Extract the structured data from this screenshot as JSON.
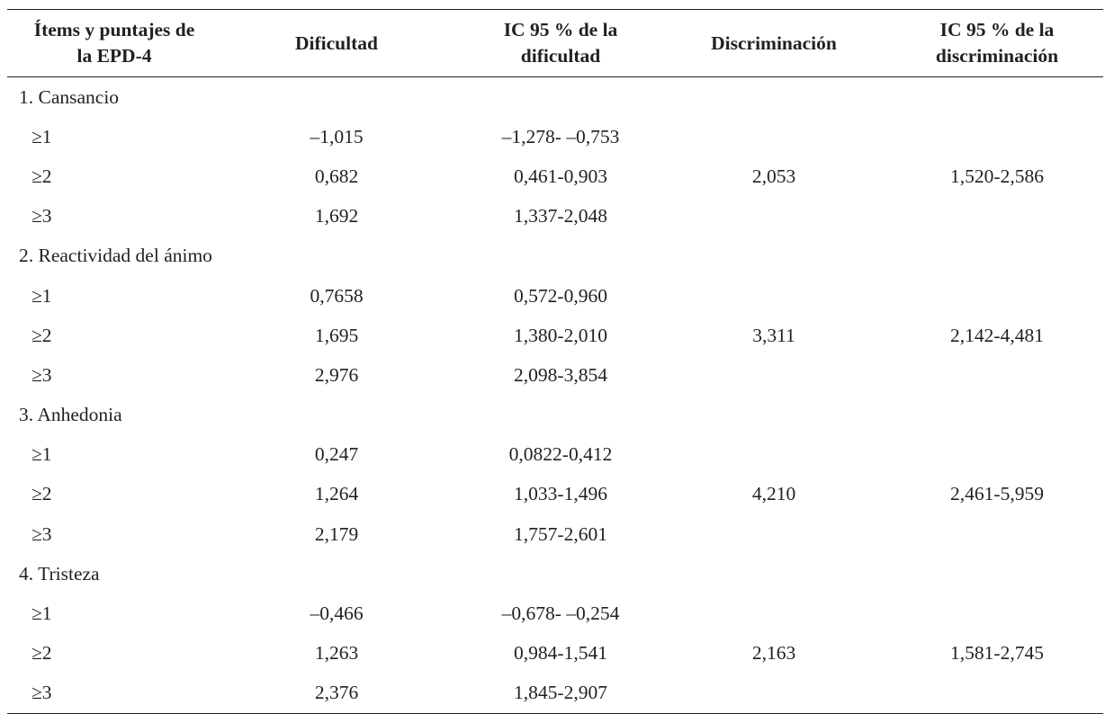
{
  "table": {
    "headers": [
      "Ítems y puntajes de\nla EPD-4",
      "Dificultad",
      "IC 95 % de la\ndificultad",
      "Discriminación",
      "IC 95 % de la\ndiscriminación"
    ],
    "groups": [
      {
        "label": "1. Cansancio",
        "discriminacion": "2,053",
        "ic_discriminacion": "1,520-2,586",
        "rows": [
          {
            "nivel": "≥1",
            "dificultad": "–1,015",
            "ic_dificultad": "–1,278- –0,753"
          },
          {
            "nivel": "≥2",
            "dificultad": "0,682",
            "ic_dificultad": "0,461-0,903"
          },
          {
            "nivel": "≥3",
            "dificultad": "1,692",
            "ic_dificultad": "1,337-2,048"
          }
        ]
      },
      {
        "label": "2. Reactividad del ánimo",
        "discriminacion": "3,311",
        "ic_discriminacion": "2,142-4,481",
        "rows": [
          {
            "nivel": "≥1",
            "dificultad": "0,7658",
            "ic_dificultad": "0,572-0,960"
          },
          {
            "nivel": "≥2",
            "dificultad": "1,695",
            "ic_dificultad": "1,380-2,010"
          },
          {
            "nivel": "≥3",
            "dificultad": "2,976",
            "ic_dificultad": "2,098-3,854"
          }
        ]
      },
      {
        "label": "3. Anhedonia",
        "discriminacion": "4,210",
        "ic_discriminacion": "2,461-5,959",
        "rows": [
          {
            "nivel": "≥1",
            "dificultad": "0,247",
            "ic_dificultad": "0,0822-0,412"
          },
          {
            "nivel": "≥2",
            "dificultad": "1,264",
            "ic_dificultad": "1,033-1,496"
          },
          {
            "nivel": "≥3",
            "dificultad": "2,179",
            "ic_dificultad": "1,757-2,601"
          }
        ]
      },
      {
        "label": "4. Tristeza",
        "discriminacion": "2,163",
        "ic_discriminacion": "1,581-2,745",
        "rows": [
          {
            "nivel": "≥1",
            "dificultad": "–0,466",
            "ic_dificultad": "–0,678- –0,254"
          },
          {
            "nivel": "≥2",
            "dificultad": "1,263",
            "ic_dificultad": "0,984-1,541"
          },
          {
            "nivel": "≥3",
            "dificultad": "2,376",
            "ic_dificultad": "1,845-2,907"
          }
        ]
      }
    ]
  }
}
